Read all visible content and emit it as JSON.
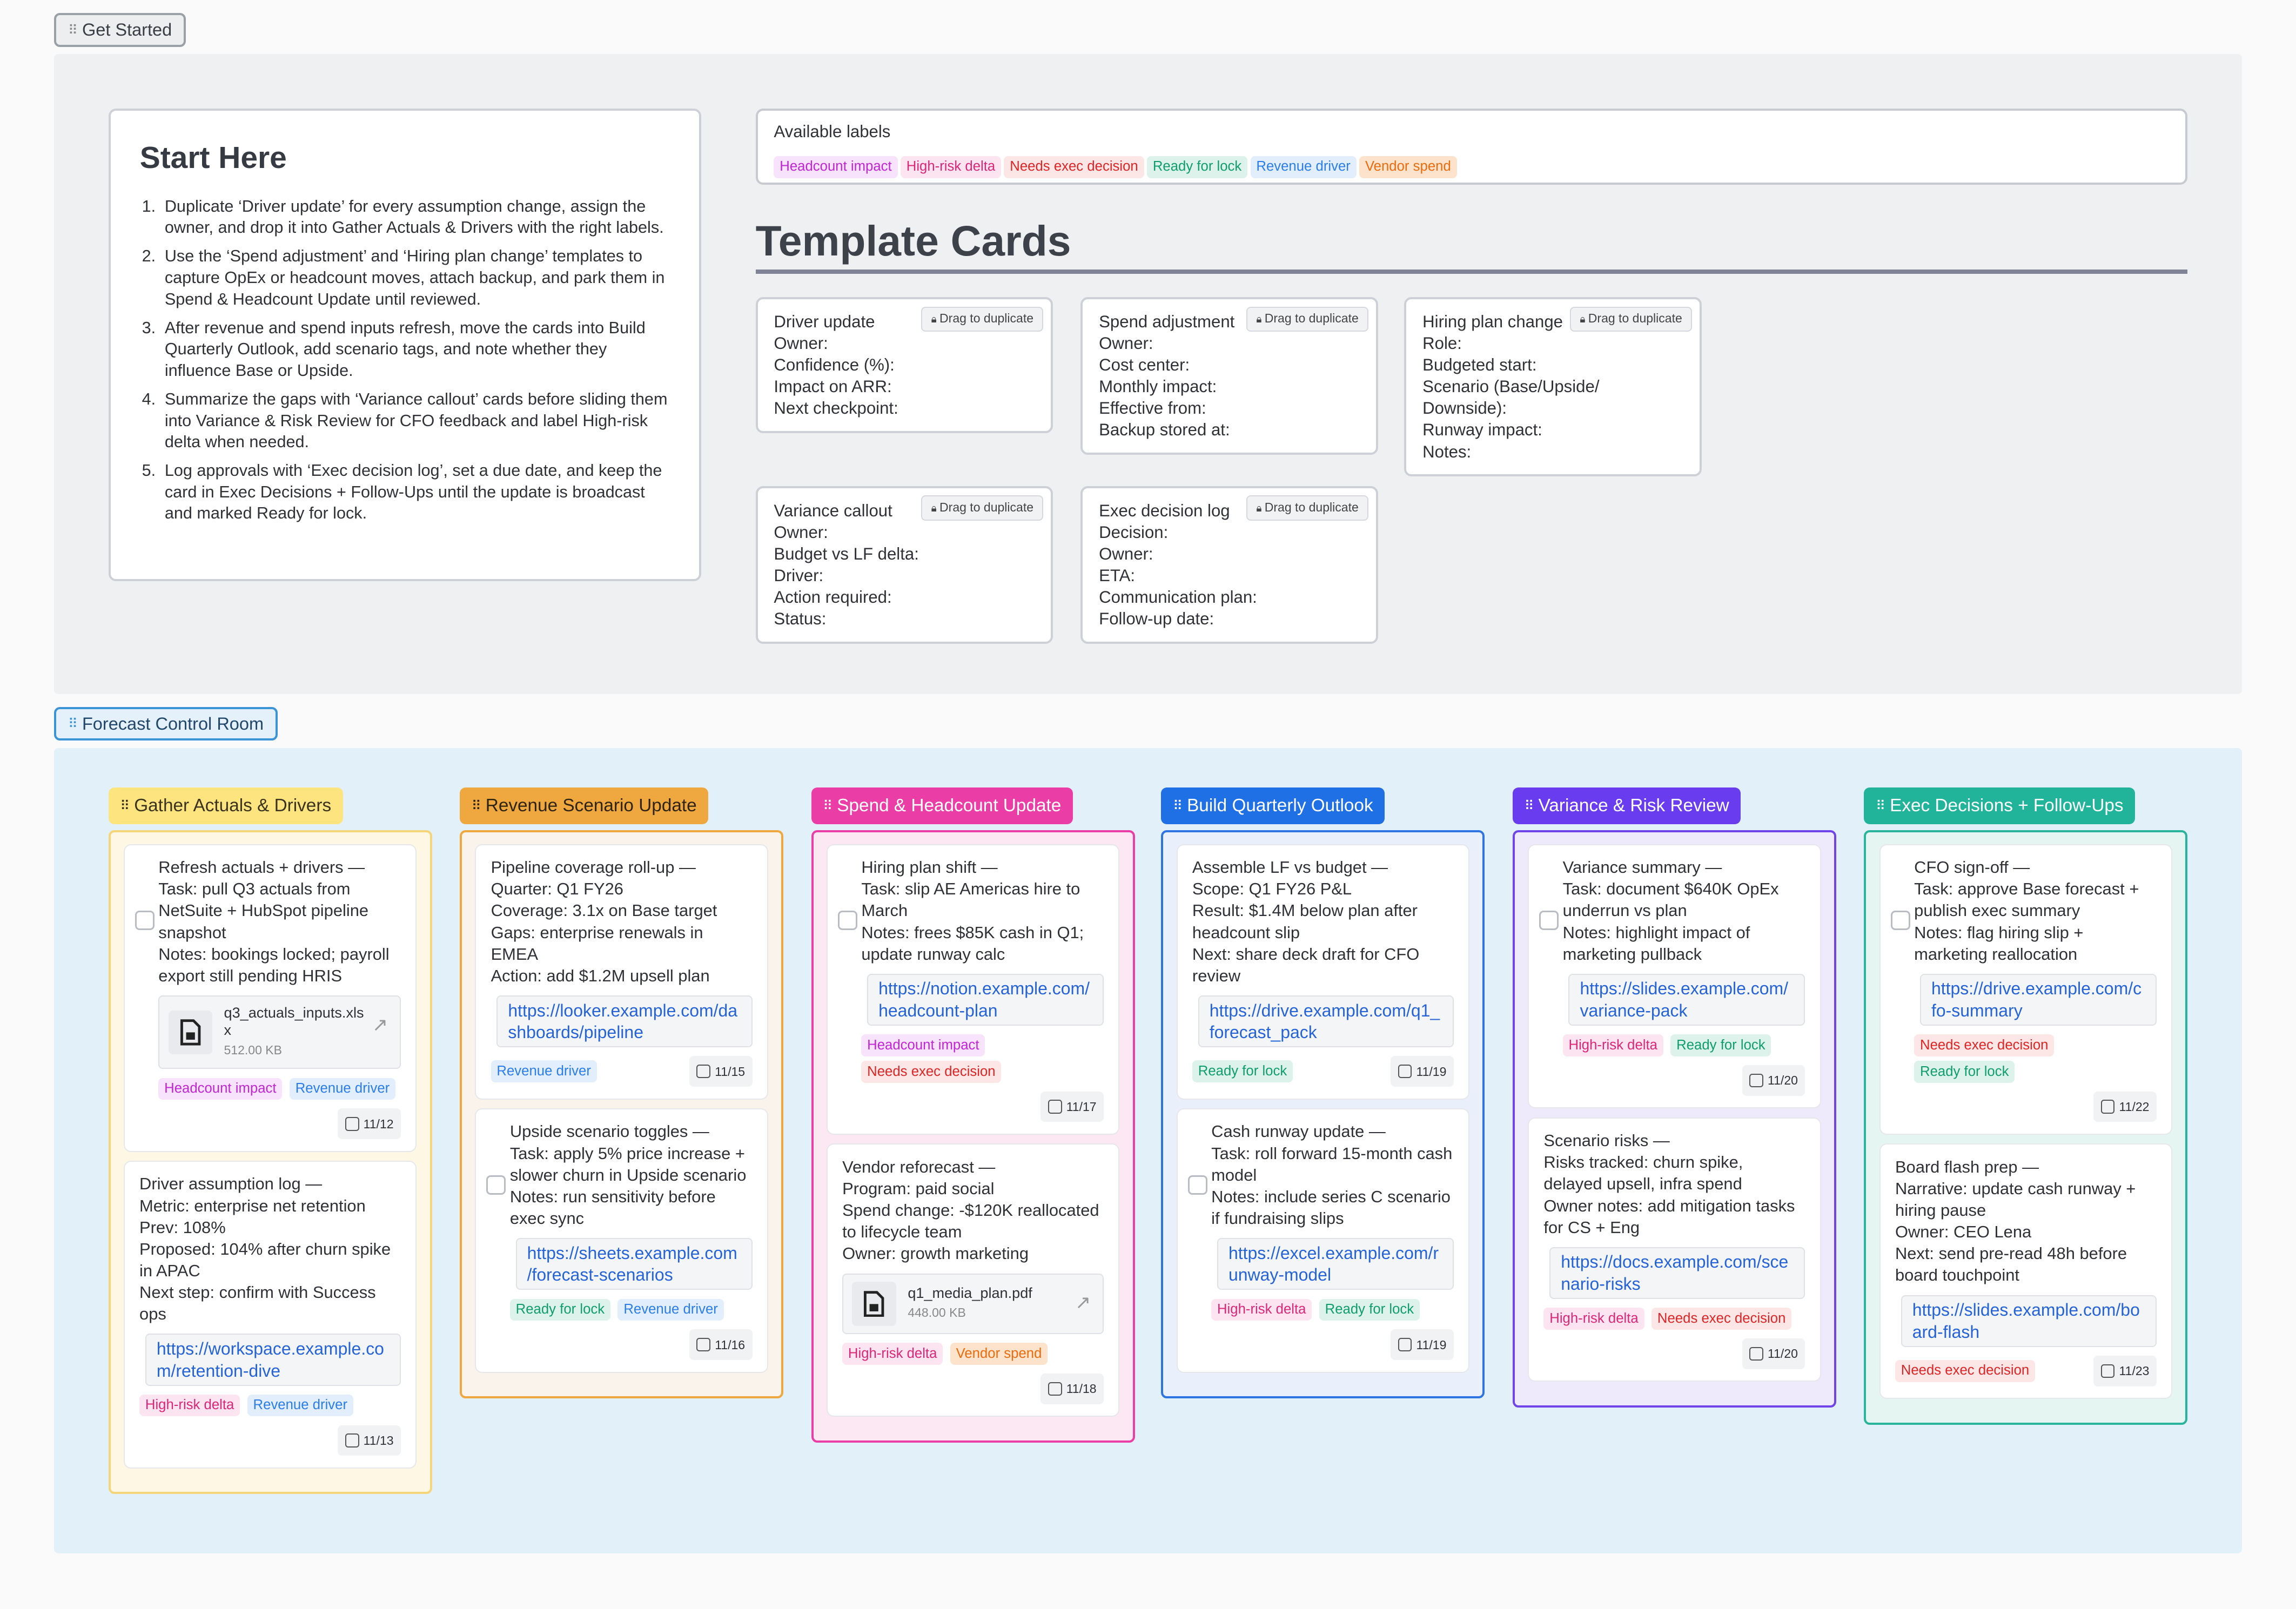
{
  "get_started_tag": "Get Started",
  "start_here": {
    "title": "Start Here",
    "steps": [
      "Duplicate ‘Driver update’ for every assumption change, assign the owner, and drop it into Gather Actuals & Drivers with the right labels.",
      "Use the ‘Spend adjustment’ and ‘Hiring plan change’ templates to capture OpEx or headcount moves, attach backup, and park them in Spend & Headcount Update until reviewed.",
      "After revenue and spend inputs refresh, move the cards into Build Quarterly Outlook, add scenario tags, and note whether they influence Base or Upside.",
      "Summarize the gaps with ‘Variance callout’ cards before sliding them into Variance & Risk Review for CFO feedback and label High-risk delta when needed.",
      "Log approvals with ‘Exec decision log’, set a due date, and keep the card in Exec Decisions + Follow-Ups until the update is broadcast and marked Ready for lock."
    ]
  },
  "available_labels": {
    "title": "Available labels",
    "labels": [
      "Headcount impact",
      "High-risk delta",
      "Needs exec decision",
      "Ready for lock",
      "Revenue driver",
      "Vendor spend"
    ]
  },
  "label_colors": {
    "Headcount impact": {
      "fg": "#c026d3",
      "bg": "#f7e3fc"
    },
    "High-risk delta": {
      "fg": "#db2777",
      "bg": "#fce4f1"
    },
    "Needs exec decision": {
      "fg": "#dc2626",
      "bg": "#fde6e6"
    },
    "Ready for lock": {
      "fg": "#0f9d6e",
      "bg": "#dcf2ea"
    },
    "Revenue driver": {
      "fg": "#2b7de9",
      "bg": "#e2eefc"
    },
    "Vendor spend": {
      "fg": "#ea6c0e",
      "bg": "#fde3cc"
    }
  },
  "template_section": {
    "title": "Template Cards",
    "drag_label": "Drag to duplicate",
    "cards": [
      {
        "title": "Driver update",
        "fields": [
          "Owner:",
          "Confidence (%):",
          "Impact on ARR:",
          "Next checkpoint:"
        ]
      },
      {
        "title": "Spend adjustment",
        "fields": [
          "Owner:",
          "Cost center:",
          "Monthly impact:",
          "Effective from:",
          "Backup stored at:"
        ]
      },
      {
        "title": "Hiring plan change",
        "fields": [
          "Role:",
          "Budgeted start:",
          "Scenario (Base/Upside/ Downside):",
          "Runway impact:",
          "Notes:"
        ]
      },
      {
        "title": "Variance callout",
        "fields": [
          "Owner:",
          "Budget vs LF delta:",
          "Driver:",
          "Action required:",
          "Status:"
        ]
      },
      {
        "title": "Exec decision log",
        "fields": [
          "Decision:",
          "Owner:",
          "ETA:",
          "Communication plan:",
          "Follow-up date:"
        ]
      }
    ]
  },
  "board_tag": "Forecast Control Room",
  "columns": [
    {
      "title": "Gather Actuals & Drivers",
      "head_bg": "#fde47f",
      "head_fg": "#3a3320",
      "border": "#f4d57a",
      "bg": "#fdf7e3",
      "cards": [
        {
          "checkbox": true,
          "lines": [
            "Refresh actuals + drivers —",
            "Task: pull Q3 actuals from NetSuite + HubSpot pipeline snapshot",
            "Notes: bookings locked; payroll export still pending HRIS"
          ],
          "file": {
            "name": "q3_actuals_inputs.xlsx",
            "size": "512.00 KB"
          },
          "labels": [
            "Headcount impact",
            "Revenue driver"
          ],
          "date": "11/12"
        },
        {
          "checkbox": false,
          "lines": [
            "Driver assumption log —",
            "Metric: enterprise net retention",
            "Prev: 108%",
            "Proposed: 104% after churn spike in APAC",
            "Next step: confirm with Success ops"
          ],
          "link": "https://workspace.example.com/retention-dive",
          "labels": [
            "High-risk delta",
            "Revenue driver"
          ],
          "date": "11/13"
        }
      ]
    },
    {
      "title": "Revenue Scenario Update",
      "head_bg": "#efa73f",
      "head_fg": "#2f2414",
      "border": "#efa73f",
      "bg": "#f9f3ec",
      "cards": [
        {
          "checkbox": false,
          "lines": [
            "Pipeline coverage roll-up —",
            "Quarter: Q1 FY26",
            "Coverage: 3.1x on Base target",
            "Gaps: enterprise renewals in EMEA",
            "Action: add $1.2M upsell plan"
          ],
          "link": "https://looker.example.com/dashboards/pipeline",
          "labels": [
            "Revenue driver"
          ],
          "date": "11/15"
        },
        {
          "checkbox": true,
          "lines": [
            "Upside scenario toggles —",
            "Task: apply 5% price increase + slower churn in Upside scenario",
            "Notes: run sensitivity before exec sync"
          ],
          "link": "https://sheets.example.com/forecast-scenarios",
          "labels": [
            "Ready for lock",
            "Revenue driver"
          ],
          "date": "11/16"
        }
      ]
    },
    {
      "title": "Spend & Headcount Update",
      "head_bg": "#ea3ea6",
      "head_fg": "#ffffff",
      "border": "#ea3ea6",
      "bg": "#fbe8f2",
      "cards": [
        {
          "checkbox": true,
          "lines": [
            "Hiring plan shift —",
            "Task: slip AE Americas hire to March",
            "Notes: frees $85K cash in Q1; update runway calc"
          ],
          "link": "https://notion.example.com/headcount-plan",
          "labels": [
            "Headcount impact",
            "Needs exec decision"
          ],
          "date": "11/17"
        },
        {
          "checkbox": false,
          "lines": [
            "Vendor reforecast —",
            "Program: paid social",
            "Spend change: -$120K reallocated to lifecycle team",
            "Owner: growth marketing"
          ],
          "file": {
            "name": "q1_media_plan.pdf",
            "size": "448.00 KB"
          },
          "labels": [
            "High-risk delta",
            "Vendor spend"
          ],
          "date": "11/18"
        }
      ]
    },
    {
      "title": "Build Quarterly Outlook",
      "head_bg": "#1f6fe5",
      "head_fg": "#ffffff",
      "border": "#2f74e0",
      "bg": "#e9f0fb",
      "cards": [
        {
          "checkbox": false,
          "lines": [
            "Assemble LF vs budget —",
            "Scope: Q1 FY26 P&L",
            "Result: $1.4M below plan after headcount slip",
            "Next: share deck draft for CFO review"
          ],
          "link": "https://drive.example.com/q1_forecast_pack",
          "labels": [
            "Ready for lock"
          ],
          "date": "11/19"
        },
        {
          "checkbox": true,
          "lines": [
            "Cash runway update —",
            "Task: roll forward 15-month cash model",
            "Notes: include series C scenario if fundraising slips"
          ],
          "link": "https://excel.example.com/runway-model",
          "labels": [
            "High-risk delta",
            "Ready for lock"
          ],
          "date": "11/19"
        }
      ]
    },
    {
      "title": "Variance & Risk Review",
      "head_bg": "#6a3cf0",
      "head_fg": "#ffffff",
      "border": "#7044e8",
      "bg": "#efeafb",
      "cards": [
        {
          "checkbox": true,
          "lines": [
            "Variance summary —",
            "Task: document $640K OpEx underrun vs plan",
            "Notes: highlight impact of marketing pullback"
          ],
          "link": "https://slides.example.com/variance-pack",
          "labels": [
            "High-risk delta",
            "Ready for lock"
          ],
          "date": "11/20"
        },
        {
          "checkbox": false,
          "lines": [
            "Scenario risks —",
            "Risks tracked: churn spike, delayed upsell, infra spend",
            "Owner notes: add mitigation tasks for CS + Eng"
          ],
          "link": "https://docs.example.com/scenario-risks",
          "labels": [
            "High-risk delta",
            "Needs exec decision"
          ],
          "date": "11/20"
        }
      ]
    },
    {
      "title": "Exec Decisions + Follow-Ups",
      "head_bg": "#22b39b",
      "head_fg": "#ffffff",
      "border": "#2bb49c",
      "bg": "#e5f5f1",
      "cards": [
        {
          "checkbox": true,
          "lines": [
            "CFO sign-off —",
            "Task: approve Base forecast + publish exec summary",
            "Notes: flag hiring slip + marketing reallocation"
          ],
          "link": "https://drive.example.com/cfo-summary",
          "labels": [
            "Needs exec decision",
            "Ready for lock"
          ],
          "date": "11/22"
        },
        {
          "checkbox": false,
          "lines": [
            "Board flash prep —",
            "Narrative: update cash runway + hiring pause",
            "Owner: CEO Lena",
            "Next: send pre-read 48h before board touchpoint"
          ],
          "link": "https://slides.example.com/board-flash",
          "labels": [
            "Needs exec decision"
          ],
          "date": "11/23"
        }
      ]
    }
  ]
}
